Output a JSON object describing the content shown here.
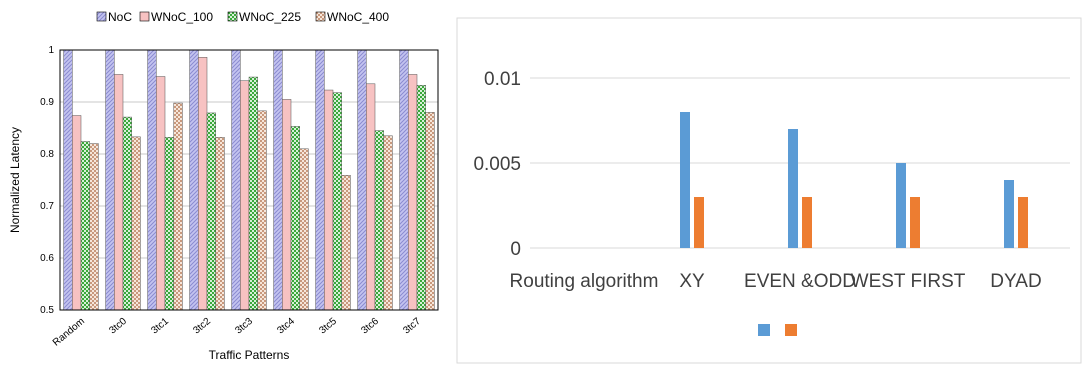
{
  "chart_data": [
    {
      "type": "bar",
      "title": "",
      "xlabel": "Traffic Patterns",
      "ylabel": "Normalized Latency",
      "ylim": [
        0.5,
        1.0
      ],
      "yticks": [
        "0.5",
        "0.6",
        "0.7",
        "0.8",
        "0.9",
        "1"
      ],
      "grid": true,
      "legend_position": "top",
      "categories": [
        "Random",
        "3tc0",
        "3tc1",
        "3tc2",
        "3tc3",
        "3tc4",
        "3tc5",
        "3tc6",
        "3tc7"
      ],
      "series": [
        {
          "name": "NoC",
          "color": "#b8b8ea",
          "pattern": "diagonal-hatch",
          "values": [
            1.0,
            1.0,
            1.0,
            1.0,
            1.0,
            1.0,
            1.0,
            1.0,
            1.0
          ]
        },
        {
          "name": "WNoC_100",
          "color": "#f7c2c2",
          "pattern": "solid",
          "values": [
            0.874,
            0.953,
            0.949,
            0.986,
            0.941,
            0.905,
            0.923,
            0.935,
            0.953
          ]
        },
        {
          "name": "WNoC_225",
          "color": "#58b858",
          "pattern": "checker",
          "values": [
            0.824,
            0.871,
            0.832,
            0.879,
            0.948,
            0.853,
            0.918,
            0.845,
            0.932
          ]
        },
        {
          "name": "WNoC_400",
          "color": "#d4a890",
          "pattern": "checker-light",
          "values": [
            0.82,
            0.833,
            0.898,
            0.832,
            0.883,
            0.81,
            0.759,
            0.835,
            0.88
          ]
        }
      ]
    },
    {
      "type": "bar",
      "title": "",
      "xlabel": "",
      "ylabel": "",
      "ylim": [
        0,
        0.01
      ],
      "yticks": [
        "0",
        "0.005",
        "0.01"
      ],
      "grid": true,
      "legend_position": "bottom",
      "categories": [
        "Routing algorithm",
        "XY",
        "EVEN &ODD",
        "WEST FIRST",
        "DYAD"
      ],
      "series": [
        {
          "name": "",
          "color": "#5b9bd5",
          "values": [
            null,
            0.008,
            0.007,
            0.005,
            0.004
          ]
        },
        {
          "name": "",
          "color": "#ed7d31",
          "values": [
            null,
            0.003,
            0.003,
            0.003,
            0.003
          ]
        }
      ]
    }
  ]
}
